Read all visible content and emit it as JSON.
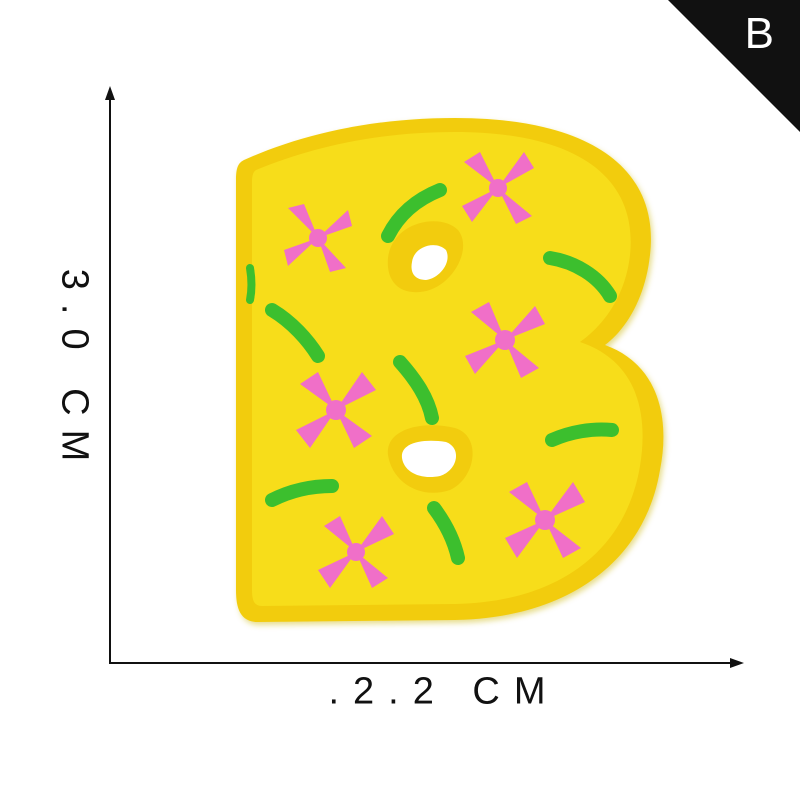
{
  "corner_badge": {
    "letter": "B",
    "color": "#111111"
  },
  "dimensions": {
    "height_label": "3.0 CM",
    "width_label": ".2.2 CM"
  },
  "patch": {
    "letter": "B",
    "base_color": "#f7dd1a",
    "border_color": "#f2cc0e",
    "flower_color": "#f06fc8",
    "leaf_color": "#3cbf2e"
  }
}
